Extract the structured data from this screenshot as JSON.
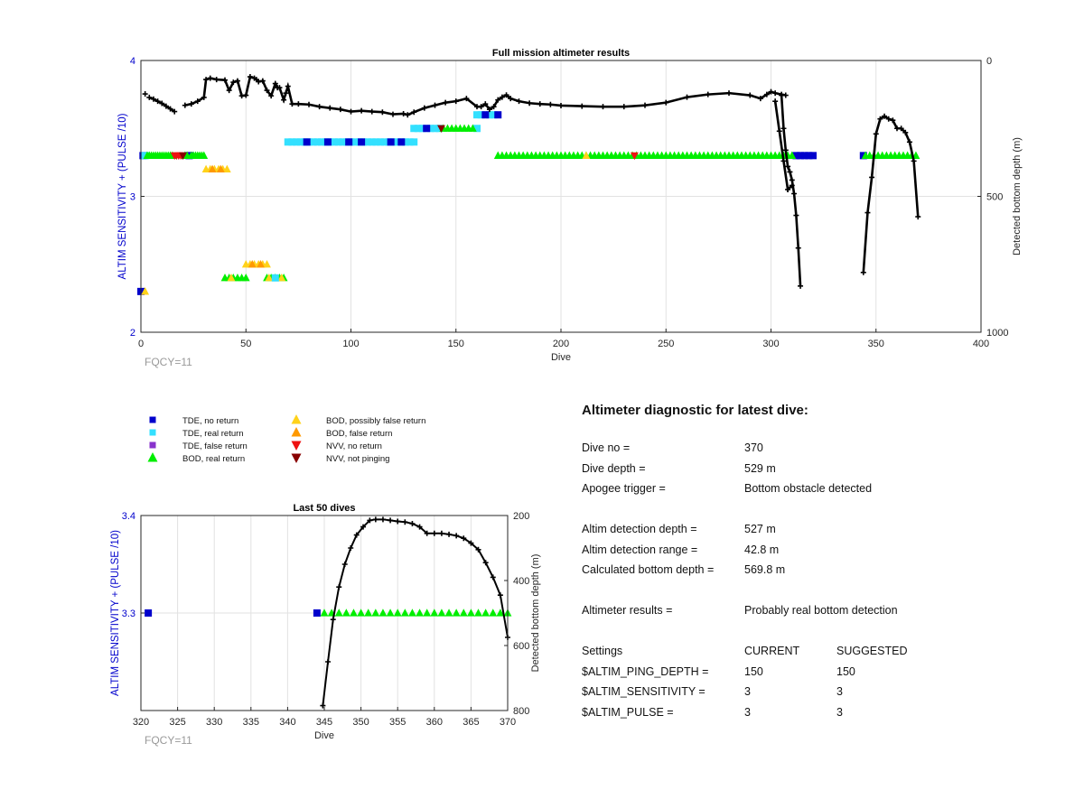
{
  "chart_data": [
    {
      "type": "scatter",
      "title": "Full mission altimeter results",
      "xlabel": "Dive",
      "ylabel": "ALTIM SENSITIVITY + (PULSE /10)",
      "y2label": "Detected bottom depth (m)",
      "xlim": [
        0,
        400
      ],
      "ylim": [
        2,
        4
      ],
      "y2lim": [
        1000,
        0
      ],
      "xticks": [
        "0",
        "50",
        "100",
        "150",
        "200",
        "250",
        "300",
        "350",
        "400"
      ],
      "yticks": [
        "2",
        "3",
        "4"
      ],
      "y2ticks": [
        "0",
        "500",
        "1000"
      ],
      "note": "FQCY=11",
      "grid": true,
      "marker_series": [
        {
          "name": "TDE, no return",
          "y": 3.3,
          "x": [
            1,
            23,
            312,
            314,
            316,
            318,
            320,
            344
          ]
        },
        {
          "name": "TDE, real return",
          "y": 3.3,
          "x": [
            2
          ]
        },
        {
          "name": "BOD, real return",
          "y": 3.3,
          "x": [
            3,
            4,
            5,
            6,
            7,
            8,
            9,
            10,
            11,
            12,
            13,
            14,
            15,
            21,
            22,
            24,
            25,
            26,
            27,
            28,
            29,
            30,
            170,
            172,
            174,
            176,
            178,
            180,
            182,
            184,
            186,
            188,
            190,
            192,
            194,
            196,
            198,
            200,
            202,
            204,
            206,
            208,
            210,
            212,
            214,
            216,
            218,
            220,
            222,
            224,
            226,
            228,
            230,
            232,
            234,
            236,
            238,
            240,
            242,
            244,
            246,
            248,
            250,
            252,
            254,
            256,
            258,
            260,
            262,
            264,
            266,
            268,
            270,
            272,
            274,
            276,
            278,
            280,
            282,
            284,
            286,
            288,
            290,
            292,
            294,
            296,
            298,
            300,
            302,
            304,
            306,
            308,
            310,
            345,
            347,
            349,
            351,
            353,
            355,
            357,
            359,
            361,
            363,
            365,
            367,
            369
          ]
        },
        {
          "name": "NVV, no return",
          "y": 3.3,
          "x": [
            16,
            17,
            18,
            19,
            235
          ]
        },
        {
          "name": "NVV, not pinging",
          "y": 3.3,
          "x": [
            20
          ]
        },
        {
          "name": "BOD, possibly false return",
          "y": 3.3,
          "x": [
            212
          ]
        },
        {
          "name": "TDE, real return",
          "y": 3.4,
          "x": [
            70,
            72,
            74,
            76,
            78,
            80,
            82,
            84,
            86,
            88,
            90,
            92,
            94,
            96,
            98,
            100,
            102,
            104,
            106,
            108,
            110,
            112,
            114,
            116,
            118,
            120,
            122,
            124,
            126,
            128,
            130
          ]
        },
        {
          "name": "TDE, no return",
          "y": 3.4,
          "x": [
            79,
            89,
            99,
            105,
            119,
            124
          ]
        },
        {
          "name": "TDE, real return",
          "y": 3.5,
          "x": [
            130,
            132,
            134,
            138,
            140,
            142,
            160
          ]
        },
        {
          "name": "TDE, no return",
          "y": 3.5,
          "x": [
            136
          ]
        },
        {
          "name": "BOD, real return",
          "y": 3.5,
          "x": [
            144,
            146,
            148,
            150,
            152,
            154,
            156,
            158
          ]
        },
        {
          "name": "NVV, not pinging",
          "y": 3.5,
          "x": [
            143
          ]
        },
        {
          "name": "TDE, real return",
          "y": 3.6,
          "x": [
            160,
            162,
            166,
            168
          ]
        },
        {
          "name": "TDE, no return",
          "y": 3.6,
          "x": [
            164,
            170
          ]
        },
        {
          "name": "BOD, possibly false return",
          "y": 3.2,
          "x": [
            31,
            33,
            35,
            37,
            39,
            41
          ]
        },
        {
          "name": "BOD, false return",
          "y": 3.2,
          "x": [
            34,
            38
          ]
        },
        {
          "name": "BOD, possibly false return",
          "y": 2.5,
          "x": [
            50,
            52,
            54,
            56,
            58,
            60
          ]
        },
        {
          "name": "BOD, false return",
          "y": 2.5,
          "x": [
            53,
            57
          ]
        },
        {
          "name": "BOD, real return",
          "y": 2.4,
          "x": [
            40,
            42,
            44,
            46,
            48,
            50,
            60,
            62,
            64,
            66,
            68
          ]
        },
        {
          "name": "BOD, possibly false return",
          "y": 2.4,
          "x": [
            43,
            61,
            67
          ]
        },
        {
          "name": "TDE, real return",
          "y": 2.4,
          "x": [
            64
          ]
        },
        {
          "name": "TDE, no return",
          "y": 2.3,
          "x": [
            0
          ]
        },
        {
          "name": "BOD, possibly false return",
          "y": 2.3,
          "x": [
            2
          ]
        }
      ],
      "depth_segments": [
        {
          "x": [
            2
          ],
          "y": [
            123
          ]
        },
        {
          "x": [
            4,
            6,
            8,
            10,
            12,
            14,
            16
          ],
          "y": [
            136,
            142,
            150,
            158,
            168,
            178,
            188
          ]
        },
        {
          "x": [
            21,
            24,
            27,
            30,
            31,
            33,
            36,
            40,
            42,
            44,
            46,
            48,
            50,
            52,
            54,
            55,
            56,
            58,
            60,
            62,
            64,
            65,
            66,
            68,
            69,
            70,
            72,
            75,
            80,
            85,
            90,
            95,
            100,
            105,
            110,
            115,
            120,
            125,
            127,
            130,
            135,
            140,
            145,
            150,
            155,
            160,
            162,
            164,
            166,
            168,
            170,
            172,
            174,
            176,
            180,
            185,
            190,
            195,
            200,
            210,
            220,
            230,
            240,
            250,
            260,
            270,
            280,
            290,
            295,
            298,
            300,
            302,
            305,
            307
          ],
          "y": [
            165,
            160,
            150,
            136,
            70,
            65,
            70,
            72,
            110,
            80,
            75,
            130,
            128,
            60,
            65,
            70,
            78,
            75,
            110,
            130,
            85,
            100,
            100,
            145,
            120,
            95,
            160,
            160,
            162,
            170,
            175,
            180,
            188,
            185,
            188,
            190,
            198,
            196,
            200,
            190,
            175,
            165,
            155,
            150,
            140,
            170,
            170,
            160,
            180,
            170,
            145,
            135,
            127,
            140,
            150,
            157,
            160,
            162,
            166,
            168,
            170,
            170,
            165,
            155,
            135,
            125,
            120,
            128,
            140,
            125,
            115,
            120,
            125,
            128
          ]
        },
        {
          "x": [
            302,
            304,
            306,
            308,
            310
          ],
          "y": [
            150,
            260,
            370,
            475,
            460
          ]
        },
        {
          "x": [
            305,
            306,
            307,
            308,
            309,
            310,
            311,
            312,
            313,
            314
          ],
          "y": [
            128,
            250,
            330,
            390,
            410,
            440,
            490,
            570,
            690,
            830
          ]
        },
        {
          "x": [
            344,
            346,
            348,
            350,
            352,
            354,
            356,
            358,
            360,
            362,
            364,
            366,
            368,
            370
          ],
          "y": [
            780,
            560,
            430,
            270,
            215,
            205,
            215,
            220,
            250,
            250,
            265,
            300,
            370,
            575
          ]
        }
      ]
    },
    {
      "type": "scatter",
      "title": "Last 50 dives",
      "xlabel": "Dive",
      "ylabel": "ALTIM SENSITIVITY + (PULSE /10)",
      "y2label": "Detected bottom depth (m)",
      "xlim": [
        320,
        370
      ],
      "ylim": [
        3.2,
        3.4
      ],
      "y2lim": [
        800,
        200
      ],
      "xticks": [
        "320",
        "325",
        "330",
        "335",
        "340",
        "345",
        "350",
        "355",
        "360",
        "365",
        "370"
      ],
      "yticks": [
        "3.3",
        "3.4"
      ],
      "y2ticks": [
        "200",
        "400",
        "600",
        "800"
      ],
      "note": "FQCY=11",
      "grid": true,
      "marker_series": [
        {
          "name": "TDE, no return",
          "y": 3.3,
          "x": [
            321,
            344
          ]
        },
        {
          "name": "BOD, real return",
          "y": 3.3,
          "x": [
            345,
            346,
            347,
            348,
            349,
            350,
            351,
            352,
            353,
            354,
            355,
            356,
            357,
            358,
            359,
            360,
            361,
            362,
            363,
            364,
            365,
            366,
            367,
            368,
            369,
            370
          ]
        }
      ],
      "depth": {
        "x": [
          344.8,
          345.5,
          346.2,
          347,
          347.8,
          348.6,
          349.4,
          350.3,
          351.2,
          352,
          353,
          354,
          355,
          356,
          357,
          358,
          359,
          360,
          361,
          362,
          363,
          364,
          365,
          366,
          367,
          368,
          369,
          370
        ],
        "y": [
          785,
          650,
          520,
          420,
          350,
          300,
          260,
          235,
          215,
          212,
          212,
          215,
          218,
          220,
          225,
          235,
          255,
          255,
          255,
          258,
          262,
          270,
          285,
          305,
          345,
          390,
          445,
          575
        ]
      }
    }
  ],
  "legend": {
    "items": [
      {
        "label": "TDE, no return",
        "shape": "square",
        "color": "#0000cc"
      },
      {
        "label": "TDE, real return",
        "shape": "square",
        "color": "#33e0ff"
      },
      {
        "label": "TDE, false return",
        "shape": "square",
        "color": "#8833cc"
      },
      {
        "label": "BOD, real return",
        "shape": "triangle-up",
        "color": "#00ee00"
      },
      {
        "label": "BOD, possibly false return",
        "shape": "triangle-up",
        "color": "#ffd21a"
      },
      {
        "label": "BOD, false return",
        "shape": "triangle-up",
        "color": "#ff9900"
      },
      {
        "label": "NVV, no return",
        "shape": "triangle-down",
        "color": "#ee1111"
      },
      {
        "label": "NVV, not pinging",
        "shape": "triangle-down",
        "color": "#880000"
      }
    ]
  },
  "diagnostic": {
    "title": "Altimeter diagnostic for latest dive:",
    "dive_no_label": "Dive no =",
    "dive_no_value": "370",
    "dive_depth_label": "Dive depth =",
    "dive_depth_value": "529 m",
    "apogee_label": "Apogee trigger =",
    "apogee_value": "Bottom obstacle detected",
    "altim_depth_label": "Altim detection depth =",
    "altim_depth_value": "527 m",
    "altim_range_label": "Altim detection range =",
    "altim_range_value": "42.8 m",
    "calc_depth_label": "Calculated bottom depth =",
    "calc_depth_value": "569.8 m",
    "results_label": "Altimeter results =",
    "results_value": "Probably real bottom detection",
    "settings_header": "Settings",
    "current_header": "CURRENT",
    "suggested_header": "SUGGESTED",
    "ping_depth_label": "$ALTIM_PING_DEPTH =",
    "ping_depth_current": "150",
    "ping_depth_suggested": "150",
    "sensitivity_label": "$ALTIM_SENSITIVITY =",
    "sensitivity_current": "3",
    "sensitivity_suggested": "3",
    "pulse_label": "$ALTIM_PULSE =",
    "pulse_current": "3",
    "pulse_suggested": "3"
  },
  "colors": {
    "axis_left": "#0000cc",
    "depth_line": "#000000",
    "grid": "#e2e2e2",
    "note": "#999999"
  }
}
